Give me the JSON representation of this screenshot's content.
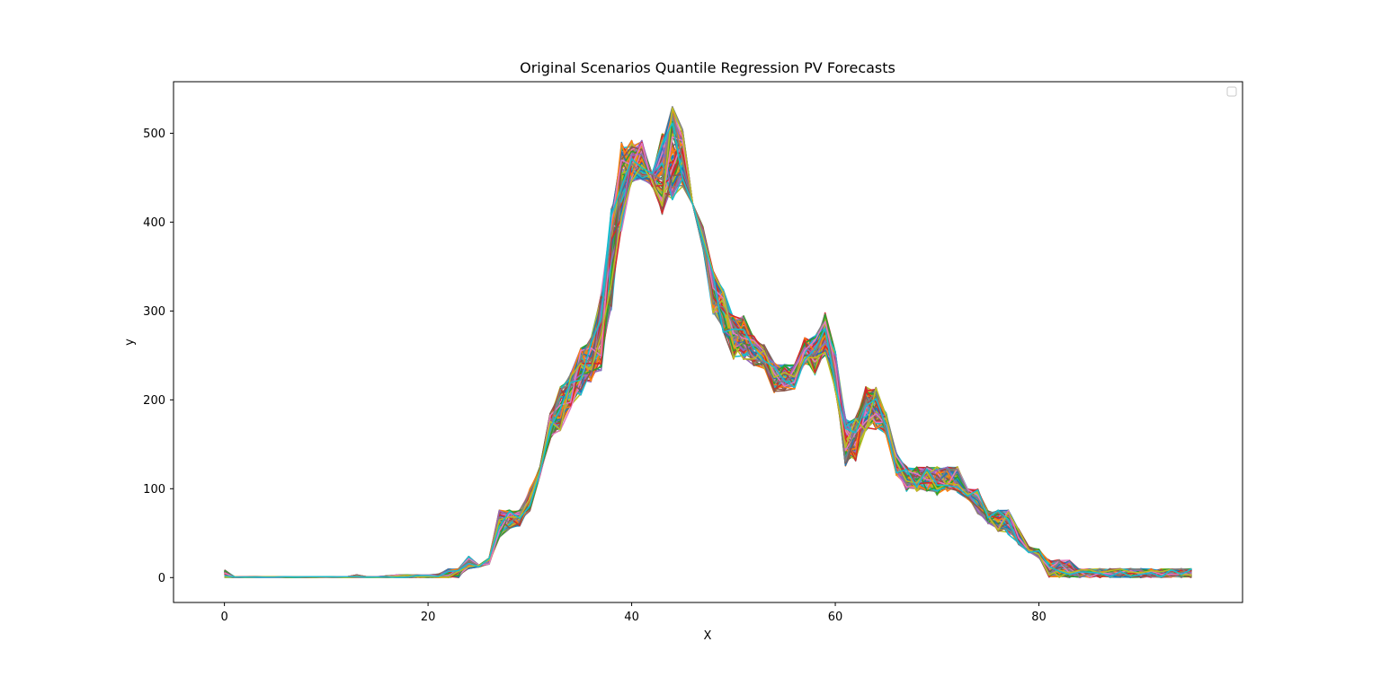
{
  "chart_data": {
    "type": "line",
    "title": "Original Scenarios Quantile Regression PV Forecasts",
    "xlabel": "X",
    "ylabel": "y",
    "xlim": [
      -5,
      100
    ],
    "ylim": [
      -28,
      558
    ],
    "x_ticks": [
      0,
      20,
      40,
      60,
      80
    ],
    "y_ticks": [
      0,
      100,
      200,
      300,
      400,
      500
    ],
    "grid": false,
    "legend": {
      "placement": "top-right",
      "entries": []
    },
    "x": [
      0,
      1,
      2,
      3,
      4,
      5,
      6,
      7,
      8,
      9,
      10,
      11,
      12,
      13,
      14,
      15,
      16,
      17,
      18,
      19,
      20,
      21,
      22,
      23,
      24,
      25,
      26,
      27,
      28,
      29,
      30,
      31,
      32,
      33,
      34,
      35,
      36,
      37,
      38,
      39,
      40,
      41,
      42,
      43,
      44,
      45,
      46,
      47,
      48,
      49,
      50,
      51,
      52,
      53,
      54,
      55,
      56,
      57,
      58,
      59,
      60,
      61,
      62,
      63,
      64,
      65,
      66,
      67,
      68,
      69,
      70,
      71,
      72,
      73,
      74,
      75,
      76,
      77,
      78,
      79,
      80,
      81,
      82,
      83,
      84,
      85,
      86,
      87,
      88,
      89,
      90,
      91,
      92,
      93,
      94,
      95
    ],
    "band_low": [
      0,
      0,
      0,
      0,
      0,
      0,
      0,
      0,
      0,
      0,
      0,
      0,
      0,
      0,
      0,
      0,
      0,
      0,
      0,
      0,
      0,
      0,
      0,
      0,
      10,
      12,
      15,
      45,
      55,
      58,
      75,
      115,
      155,
      165,
      190,
      205,
      220,
      232,
      300,
      390,
      445,
      448,
      440,
      408,
      425,
      440,
      420,
      370,
      295,
      275,
      245,
      245,
      238,
      235,
      208,
      210,
      212,
      240,
      228,
      250,
      210,
      125,
      130,
      165,
      165,
      160,
      115,
      97,
      97,
      97,
      92,
      97,
      95,
      88,
      72,
      60,
      52,
      48,
      37,
      28,
      22,
      0,
      0,
      0,
      0,
      0,
      0,
      0,
      0,
      0,
      0,
      0,
      0,
      0,
      0,
      0
    ],
    "band_high": [
      9,
      1,
      1,
      1,
      1,
      1,
      1,
      1,
      1,
      1,
      1,
      1,
      1,
      3,
      1,
      1,
      2,
      3,
      3,
      3,
      3,
      4,
      10,
      10,
      24,
      14,
      22,
      76,
      76,
      76,
      100,
      125,
      185,
      215,
      230,
      258,
      270,
      320,
      415,
      490,
      492,
      492,
      455,
      500,
      530,
      505,
      420,
      395,
      345,
      325,
      295,
      295,
      272,
      262,
      242,
      240,
      240,
      270,
      272,
      298,
      255,
      180,
      180,
      215,
      215,
      185,
      140,
      125,
      125,
      125,
      125,
      125,
      125,
      100,
      100,
      75,
      76,
      76,
      55,
      35,
      32,
      20,
      20,
      20,
      10,
      10,
      10,
      10,
      10,
      10,
      10,
      10,
      10,
      10,
      10,
      10
    ],
    "series_colors": [
      "#1f77b4",
      "#ff7f0e",
      "#2ca02c",
      "#d62728",
      "#9467bd",
      "#8c564b",
      "#e377c2",
      "#7f7f7f",
      "#bcbd22",
      "#17becf"
    ],
    "series_count": 100
  }
}
